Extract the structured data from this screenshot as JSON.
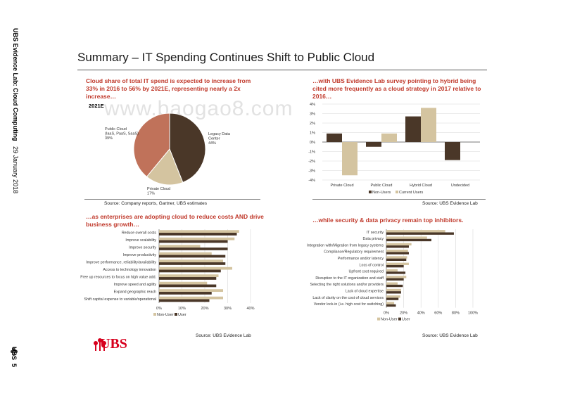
{
  "sidebar": {
    "report_name": "UBS Evidence Lab: Cloud Computing",
    "date": "29 January 2018",
    "brand": "UBS",
    "page_number": "5"
  },
  "title": "Summary – IT Spending Continues Shift to Public Cloud",
  "watermark": "www.baogao8.com",
  "logo_text": "UBS",
  "colors": {
    "dark": "#4a3728",
    "light": "#d4c4a0",
    "pie_red": "#c0725a",
    "heading": "#c0392b",
    "brand": "#d7001e"
  },
  "panels": {
    "top_left": {
      "heading": "Cloud share of total IT spend is expected to increase from 33% in 2016 to 56% by 2021E, representing nearly a 2x increase…",
      "source": "Source:  Company reports, Gartner, UBS estimates"
    },
    "top_right": {
      "heading": "…with UBS Evidence Lab survey pointing to hybrid being cited more frequently as a cloud strategy in 2017 relative to 2016…",
      "source": "Source:  UBS Evidence Lab"
    },
    "bottom_left": {
      "heading": "…as enterprises are adopting cloud to reduce costs AND drive business growth…",
      "source": "Source:  UBS Evidence Lab"
    },
    "bottom_right": {
      "heading": "…while security & data privacy remain top inhibitors.",
      "source": "Source:  UBS Evidence Lab"
    }
  },
  "chart_data": [
    {
      "type": "pie",
      "title": "2021E",
      "slices": [
        {
          "label": "Legacy Data Center",
          "value_label": "44%",
          "value": 44
        },
        {
          "label": "Private Cloud",
          "value_label": "17%",
          "value": 17
        },
        {
          "label": "Public Cloud (IaaS, PaaS, SaaS)",
          "value_label": "39%",
          "value": 39
        }
      ]
    },
    {
      "type": "bar",
      "categories": [
        "Private Cloud",
        "Public Cloud",
        "Hybrid Cloud",
        "Undecided"
      ],
      "series": [
        {
          "name": "Non-Users",
          "values": [
            0.9,
            -0.5,
            2.7,
            -1.9
          ]
        },
        {
          "name": "Current Users",
          "values": [
            -3.5,
            0.9,
            3.6,
            0
          ]
        }
      ],
      "yticks": [
        "4%",
        "3%",
        "2%",
        "1%",
        "0%",
        "-1%",
        "-2%",
        "-3%",
        "-4%"
      ],
      "ylim": [
        -4,
        4
      ],
      "legend": "bottom"
    },
    {
      "type": "bar",
      "orientation": "horizontal",
      "categories": [
        "Reduce overall costs",
        "Improve scalability",
        "Improve security",
        "Improve productivity",
        "Improve performance, reliability/availability",
        "Access to technology innovation",
        "Free up resources to focus on high value add.",
        "Improve speed and agility",
        "Expand geographic reach",
        "Shift capital expense to variable/operational"
      ],
      "series": [
        {
          "name": "Non-User",
          "values": [
            35,
            33,
            18,
            23,
            28,
            32,
            26,
            21,
            28,
            28
          ]
        },
        {
          "name": "User",
          "values": [
            34,
            30,
            30,
            29,
            29,
            27,
            25,
            25,
            23,
            22
          ]
        }
      ],
      "xticks": [
        "0%",
        "10%",
        "20%",
        "30%",
        "40%"
      ],
      "xlim": [
        0,
        40
      ],
      "legend": "bottom-left"
    },
    {
      "type": "bar",
      "orientation": "horizontal",
      "categories": [
        "IT security",
        "Data privacy",
        "Integration with/Migration from legacy systems",
        "Compliance/Regulatory requirement",
        "Performance and/or latency",
        "Loss of control",
        "Upfront cost required",
        "Disruption to the IT organization and staff",
        "Selecting the right solutions and/or providers",
        "Lack of cloud expertise",
        "Lack of clarity on the cost of cloud services",
        "Vendor lock-in (i.e. high cost for switching)"
      ],
      "series": [
        {
          "name": "Non-User",
          "values": [
            68,
            47,
            29,
            25,
            24,
            26,
            13,
            23,
            13,
            17,
            16,
            9
          ]
        },
        {
          "name": "User",
          "values": [
            78,
            52,
            26,
            26,
            23,
            20,
            22,
            20,
            19,
            17,
            14,
            11
          ]
        }
      ],
      "xticks": [
        "0%",
        "20%",
        "40%",
        "60%",
        "80%",
        "100%"
      ],
      "xlim": [
        0,
        100
      ],
      "legend": "bottom-left"
    }
  ]
}
